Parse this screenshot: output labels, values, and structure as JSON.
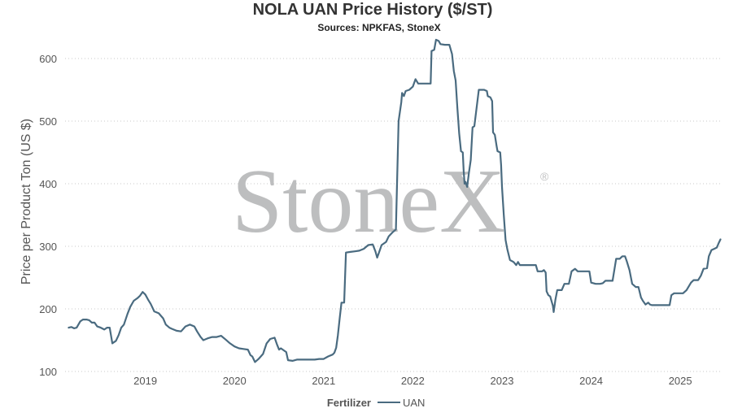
{
  "chart_data": {
    "type": "line",
    "title": "NOLA UAN Price History ($/ST)",
    "subtitle": "Sources: NPKFAS, StoneX",
    "xlabel": "",
    "ylabel": "Price per Product Ton (US $)",
    "xlim": [
      2018.0,
      2025.3
    ],
    "ylim": [
      100,
      640
    ],
    "y_ticks": [
      100,
      200,
      300,
      400,
      500,
      600
    ],
    "x_ticks": [
      {
        "value": 2018.9,
        "label": "2019"
      },
      {
        "value": 2019.9,
        "label": "2020"
      },
      {
        "value": 2020.9,
        "label": "2021"
      },
      {
        "value": 2021.9,
        "label": "2022"
      },
      {
        "value": 2022.9,
        "label": "2023"
      },
      {
        "value": 2023.9,
        "label": "2024"
      },
      {
        "value": 2024.9,
        "label": "2025"
      }
    ],
    "grid": "horizontal dotted",
    "legend": {
      "title": "Fertilizer",
      "placement": "bottom-center"
    },
    "watermark": "StoneX",
    "watermark_mark": "®",
    "line_color": "#4a6b80",
    "series": [
      {
        "name": "UAN",
        "color": "#4a6b80",
        "points": [
          [
            2018.04,
            170
          ],
          [
            2018.07,
            171
          ],
          [
            2018.1,
            169
          ],
          [
            2018.13,
            170
          ],
          [
            2018.17,
            180
          ],
          [
            2018.2,
            183
          ],
          [
            2018.24,
            183
          ],
          [
            2018.27,
            182
          ],
          [
            2018.3,
            178
          ],
          [
            2018.33,
            178
          ],
          [
            2018.36,
            172
          ],
          [
            2018.4,
            170
          ],
          [
            2018.44,
            167
          ],
          [
            2018.47,
            170
          ],
          [
            2018.5,
            170
          ],
          [
            2018.53,
            145
          ],
          [
            2018.57,
            149
          ],
          [
            2018.6,
            158
          ],
          [
            2018.63,
            170
          ],
          [
            2018.66,
            175
          ],
          [
            2018.7,
            192
          ],
          [
            2018.73,
            203
          ],
          [
            2018.77,
            213
          ],
          [
            2018.81,
            217
          ],
          [
            2018.84,
            221
          ],
          [
            2018.87,
            227
          ],
          [
            2018.9,
            223
          ],
          [
            2018.93,
            215
          ],
          [
            2018.96,
            208
          ],
          [
            2019.0,
            196
          ],
          [
            2019.05,
            193
          ],
          [
            2019.1,
            185
          ],
          [
            2019.13,
            175
          ],
          [
            2019.17,
            170
          ],
          [
            2019.2,
            168
          ],
          [
            2019.25,
            165
          ],
          [
            2019.3,
            164
          ],
          [
            2019.35,
            172
          ],
          [
            2019.4,
            175
          ],
          [
            2019.45,
            172
          ],
          [
            2019.48,
            164
          ],
          [
            2019.52,
            155
          ],
          [
            2019.55,
            150
          ],
          [
            2019.6,
            153
          ],
          [
            2019.65,
            155
          ],
          [
            2019.7,
            155
          ],
          [
            2019.75,
            157
          ],
          [
            2019.8,
            151
          ],
          [
            2019.85,
            145
          ],
          [
            2019.9,
            140
          ],
          [
            2019.95,
            137
          ],
          [
            2020.0,
            136
          ],
          [
            2020.05,
            135
          ],
          [
            2020.08,
            126
          ],
          [
            2020.1,
            124
          ],
          [
            2020.13,
            115
          ],
          [
            2020.17,
            120
          ],
          [
            2020.22,
            128
          ],
          [
            2020.26,
            145
          ],
          [
            2020.3,
            152
          ],
          [
            2020.35,
            154
          ],
          [
            2020.38,
            142
          ],
          [
            2020.4,
            135
          ],
          [
            2020.42,
            137
          ],
          [
            2020.48,
            131
          ],
          [
            2020.5,
            118
          ],
          [
            2020.55,
            117
          ],
          [
            2020.6,
            119
          ],
          [
            2020.65,
            119
          ],
          [
            2020.7,
            119
          ],
          [
            2020.75,
            119
          ],
          [
            2020.8,
            119
          ],
          [
            2020.85,
            120
          ],
          [
            2020.9,
            120
          ],
          [
            2020.95,
            124
          ],
          [
            2021.0,
            127
          ],
          [
            2021.02,
            130
          ],
          [
            2021.04,
            138
          ],
          [
            2021.06,
            158
          ],
          [
            2021.08,
            185
          ],
          [
            2021.1,
            210
          ],
          [
            2021.13,
            210
          ],
          [
            2021.15,
            290
          ],
          [
            2021.2,
            291
          ],
          [
            2021.25,
            292
          ],
          [
            2021.3,
            293
          ],
          [
            2021.35,
            296
          ],
          [
            2021.4,
            302
          ],
          [
            2021.45,
            303
          ],
          [
            2021.48,
            292
          ],
          [
            2021.5,
            282
          ],
          [
            2021.52,
            290
          ],
          [
            2021.55,
            302
          ],
          [
            2021.6,
            307
          ],
          [
            2021.63,
            316
          ],
          [
            2021.67,
            322
          ],
          [
            2021.71,
            327
          ],
          [
            2021.74,
            500
          ],
          [
            2021.77,
            530
          ],
          [
            2021.78,
            545
          ],
          [
            2021.8,
            540
          ],
          [
            2021.82,
            548
          ],
          [
            2021.86,
            550
          ],
          [
            2021.9,
            555
          ],
          [
            2021.93,
            567
          ],
          [
            2021.96,
            560
          ],
          [
            2022.0,
            560
          ],
          [
            2022.05,
            560
          ],
          [
            2022.1,
            560
          ],
          [
            2022.11,
            612
          ],
          [
            2022.14,
            614
          ],
          [
            2022.16,
            630
          ],
          [
            2022.19,
            628
          ],
          [
            2022.21,
            623
          ],
          [
            2022.26,
            622
          ],
          [
            2022.31,
            622
          ],
          [
            2022.34,
            607
          ],
          [
            2022.36,
            580
          ],
          [
            2022.38,
            565
          ],
          [
            2022.4,
            520
          ],
          [
            2022.42,
            480
          ],
          [
            2022.44,
            452
          ],
          [
            2022.46,
            450
          ],
          [
            2022.47,
            420
          ],
          [
            2022.48,
            400
          ],
          [
            2022.49,
            403
          ],
          [
            2022.51,
            395
          ],
          [
            2022.53,
            418
          ],
          [
            2022.55,
            438
          ],
          [
            2022.57,
            490
          ],
          [
            2022.59,
            492
          ],
          [
            2022.61,
            515
          ],
          [
            2022.64,
            550
          ],
          [
            2022.7,
            550
          ],
          [
            2022.73,
            548
          ],
          [
            2022.74,
            540
          ],
          [
            2022.77,
            538
          ],
          [
            2022.79,
            532
          ],
          [
            2022.8,
            482
          ],
          [
            2022.82,
            478
          ],
          [
            2022.84,
            460
          ],
          [
            2022.85,
            452
          ],
          [
            2022.88,
            450
          ],
          [
            2022.89,
            430
          ],
          [
            2022.9,
            395
          ],
          [
            2022.92,
            350
          ],
          [
            2022.94,
            310
          ],
          [
            2022.96,
            295
          ],
          [
            2022.99,
            278
          ],
          [
            2023.03,
            275
          ],
          [
            2023.06,
            270
          ],
          [
            2023.08,
            275
          ],
          [
            2023.1,
            270
          ],
          [
            2023.2,
            270
          ],
          [
            2023.28,
            270
          ],
          [
            2023.3,
            260
          ],
          [
            2023.35,
            260
          ],
          [
            2023.37,
            262
          ],
          [
            2023.39,
            258
          ],
          [
            2023.4,
            228
          ],
          [
            2023.42,
            222
          ],
          [
            2023.44,
            220
          ],
          [
            2023.47,
            205
          ],
          [
            2023.48,
            195
          ],
          [
            2023.5,
            215
          ],
          [
            2023.52,
            230
          ],
          [
            2023.57,
            230
          ],
          [
            2023.6,
            240
          ],
          [
            2023.65,
            240
          ],
          [
            2023.68,
            260
          ],
          [
            2023.72,
            264
          ],
          [
            2023.75,
            260
          ],
          [
            2023.8,
            260
          ],
          [
            2023.88,
            260
          ],
          [
            2023.9,
            242
          ],
          [
            2023.95,
            240
          ],
          [
            2024.0,
            240
          ],
          [
            2024.03,
            241
          ],
          [
            2024.06,
            245
          ],
          [
            2024.1,
            245
          ],
          [
            2024.14,
            245
          ],
          [
            2024.18,
            280
          ],
          [
            2024.22,
            280
          ],
          [
            2024.25,
            284
          ],
          [
            2024.28,
            284
          ],
          [
            2024.3,
            276
          ],
          [
            2024.33,
            262
          ],
          [
            2024.36,
            240
          ],
          [
            2024.4,
            235
          ],
          [
            2024.43,
            235
          ],
          [
            2024.46,
            218
          ],
          [
            2024.48,
            213
          ],
          [
            2024.51,
            207
          ],
          [
            2024.54,
            210
          ],
          [
            2024.56,
            207
          ],
          [
            2024.58,
            206
          ],
          [
            2024.62,
            206
          ],
          [
            2024.7,
            206
          ],
          [
            2024.78,
            206
          ],
          [
            2024.8,
            222
          ],
          [
            2024.83,
            225
          ],
          [
            2024.88,
            225
          ],
          [
            2024.93,
            225
          ],
          [
            2024.97,
            230
          ],
          [
            2025.02,
            242
          ],
          [
            2025.05,
            246
          ],
          [
            2025.1,
            246
          ],
          [
            2025.13,
            253
          ],
          [
            2025.16,
            264
          ],
          [
            2025.2,
            265
          ],
          [
            2025.22,
            284
          ],
          [
            2025.25,
            294
          ],
          [
            2025.28,
            296
          ],
          [
            2025.31,
            298
          ],
          [
            2025.33,
            305
          ],
          [
            2025.35,
            311
          ]
        ]
      }
    ]
  }
}
